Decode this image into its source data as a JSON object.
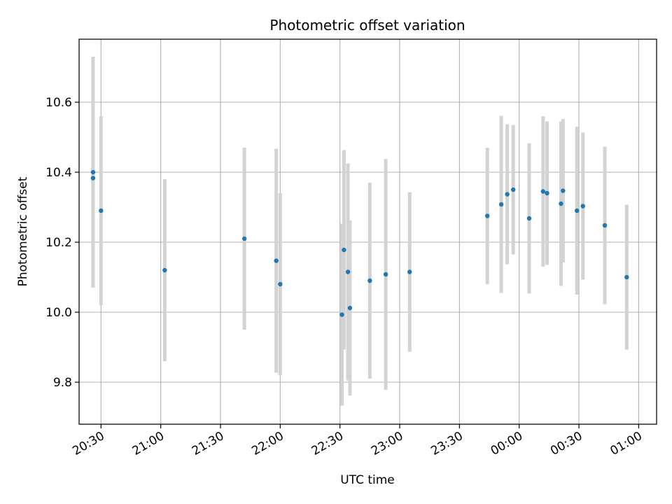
{
  "chart_data": {
    "type": "scatter",
    "title": "Photometric offset variation",
    "xlabel": "UTC time",
    "ylabel": "Photometric offset",
    "xlim": [
      "20:19",
      "01:09"
    ],
    "ylim": [
      9.68,
      10.78
    ],
    "x_ticks": [
      "20:30",
      "21:00",
      "21:30",
      "22:00",
      "22:30",
      "23:00",
      "23:30",
      "00:00",
      "00:30",
      "01:00"
    ],
    "y_ticks": [
      "9.8",
      "10.0",
      "10.2",
      "10.4",
      "10.6"
    ],
    "grid": true,
    "point_color": "#1f77b4",
    "errorbar_color": "#d3d3d3",
    "series": [
      {
        "points": [
          {
            "x": "20:26",
            "y": 10.4,
            "err": 0.33
          },
          {
            "x": "20:26",
            "y": 10.383,
            "err": 0.26
          },
          {
            "x": "20:30",
            "y": 10.29,
            "err": 0.27
          },
          {
            "x": "21:02",
            "y": 10.12,
            "err": 0.26
          },
          {
            "x": "21:42",
            "y": 10.21,
            "err": 0.26
          },
          {
            "x": "21:58",
            "y": 10.147,
            "err": 0.32
          },
          {
            "x": "22:00",
            "y": 10.08,
            "err": 0.26
          },
          {
            "x": "22:31",
            "y": 9.993,
            "err": 0.26
          },
          {
            "x": "22:32",
            "y": 10.178,
            "err": 0.285
          },
          {
            "x": "22:34",
            "y": 10.115,
            "err": 0.31
          },
          {
            "x": "22:35",
            "y": 10.012,
            "err": 0.25
          },
          {
            "x": "22:45",
            "y": 10.09,
            "err": 0.28
          },
          {
            "x": "22:53",
            "y": 10.108,
            "err": 0.33
          },
          {
            "x": "23:05",
            "y": 10.115,
            "err": 0.228
          },
          {
            "x": "23:44",
            "y": 10.275,
            "err": 0.195
          },
          {
            "x": "23:51",
            "y": 10.308,
            "err": 0.253
          },
          {
            "x": "23:54",
            "y": 10.337,
            "err": 0.2
          },
          {
            "x": "23:57",
            "y": 10.35,
            "err": 0.185
          },
          {
            "x": "00:05",
            "y": 10.268,
            "err": 0.215
          },
          {
            "x": "00:12",
            "y": 10.345,
            "err": 0.215
          },
          {
            "x": "00:14",
            "y": 10.34,
            "err": 0.205
          },
          {
            "x": "00:21",
            "y": 10.31,
            "err": 0.235
          },
          {
            "x": "00:22",
            "y": 10.347,
            "err": 0.205
          },
          {
            "x": "00:29",
            "y": 10.29,
            "err": 0.24
          },
          {
            "x": "00:32",
            "y": 10.303,
            "err": 0.21
          },
          {
            "x": "00:43",
            "y": 10.248,
            "err": 0.225
          },
          {
            "x": "00:54",
            "y": 10.1,
            "err": 0.207
          }
        ]
      }
    ]
  }
}
